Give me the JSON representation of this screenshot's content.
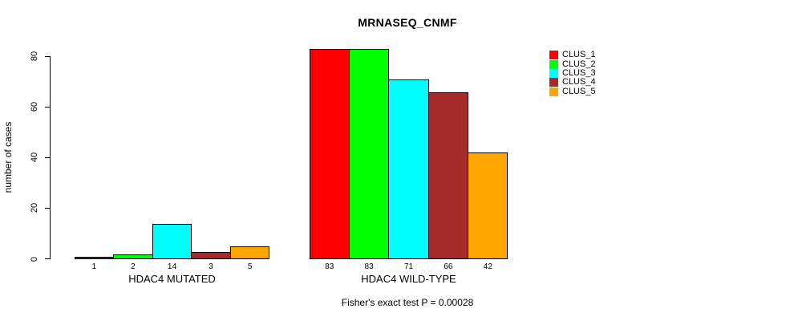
{
  "title": "MRNASEQ_CNMF",
  "footer": "Fisher's exact test P = 0.00028",
  "y_axis": {
    "label": "number of cases",
    "ticks": [
      "0",
      "20",
      "40",
      "60",
      "80"
    ]
  },
  "legend": {
    "items": [
      "CLUS_1",
      "CLUS_2",
      "CLUS_3",
      "CLUS_4",
      "CLUS_5"
    ]
  },
  "chart_data": {
    "type": "bar",
    "title": "MRNASEQ_CNMF",
    "xlabel": "",
    "ylabel": "number of cases",
    "ylim": [
      0,
      80
    ],
    "y_ticks": [
      0,
      20,
      40,
      60,
      80
    ],
    "grid": false,
    "legend_position": "right",
    "categories": [
      "HDAC4 MUTATED",
      "HDAC4 WILD-TYPE"
    ],
    "series": [
      {
        "name": "CLUS_1",
        "color": "#ff0000",
        "values": [
          1,
          83
        ]
      },
      {
        "name": "CLUS_2",
        "color": "#00ff00",
        "values": [
          2,
          83
        ]
      },
      {
        "name": "CLUS_3",
        "color": "#00ffff",
        "values": [
          14,
          71
        ]
      },
      {
        "name": "CLUS_4",
        "color": "#a52a2a",
        "values": [
          3,
          66
        ]
      },
      {
        "name": "CLUS_5",
        "color": "#ffa500",
        "values": [
          5,
          42
        ]
      }
    ],
    "bar_value_labels": [
      [
        "1",
        "2",
        "14",
        "3",
        "5"
      ],
      [
        "83",
        "83",
        "71",
        "66",
        "42"
      ]
    ],
    "annotation": "Fisher's exact test P = 0.00028"
  }
}
